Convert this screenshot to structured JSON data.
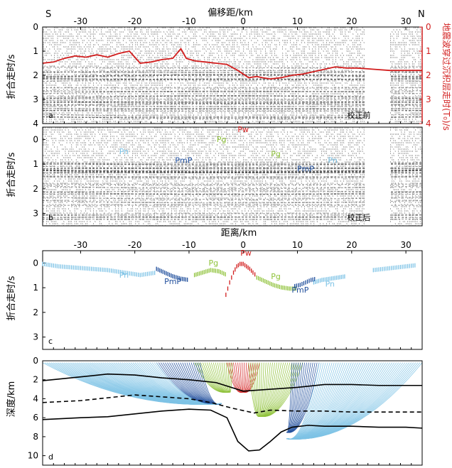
{
  "figure": {
    "label_s": "S",
    "label_n": "N",
    "top_axis_title": "偏移距/km",
    "mid_axis_title": "距离/km",
    "ylabel_time": "折合走时/s",
    "ylabel_right": "地震波穿过沉积层走时(T₀)/s",
    "ylabel_depth": "深度/km"
  },
  "colors": {
    "red": "#d21e1e",
    "green": "#8fc23a",
    "darkblue": "#1f4e9c",
    "lightblue": "#7ec3e6",
    "black": "#111111"
  },
  "chart_data": [
    {
      "id": "a",
      "type": "line",
      "panel_label": "a",
      "note": "校正前",
      "xlim": [
        -37,
        33
      ],
      "ylim": [
        0,
        4
      ],
      "x_ticks": [
        -30,
        -20,
        -10,
        0,
        10,
        20,
        30
      ],
      "y_ticks": [
        0,
        1,
        2,
        3,
        4
      ],
      "right_y_ticks": [
        0,
        1,
        2,
        3,
        4
      ],
      "series": [
        {
          "x": [
            -37,
            -35,
            -33,
            -31,
            -29,
            -27,
            -25,
            -23,
            -21,
            -19,
            -17,
            -15,
            -13,
            -11.5,
            -10.5,
            -9,
            -7,
            -5,
            -3,
            -1,
            1,
            2.5,
            3.5,
            5,
            7,
            9,
            11,
            13,
            15,
            17,
            19,
            21,
            24,
            27,
            30,
            33
          ],
          "y": [
            1.5,
            1.45,
            1.3,
            1.2,
            1.25,
            1.15,
            1.25,
            1.1,
            1.0,
            1.5,
            1.45,
            1.35,
            1.3,
            0.9,
            1.3,
            1.4,
            1.45,
            1.5,
            1.55,
            1.8,
            2.1,
            2.05,
            2.1,
            2.15,
            2.1,
            2.0,
            1.95,
            1.85,
            1.75,
            1.65,
            1.7,
            1.7,
            1.75,
            1.8,
            1.8,
            1.8
          ]
        }
      ]
    },
    {
      "id": "b",
      "type": "scatter",
      "panel_label": "b",
      "note": "校正后",
      "xlim": [
        -37,
        33
      ],
      "ylim": [
        -0.5,
        3.5
      ],
      "y_ticks": [
        0,
        1,
        2,
        3
      ],
      "phase_labels": [
        {
          "text": "Pn",
          "x": -22,
          "y": 0.6,
          "color": "lightblue"
        },
        {
          "text": "PmP",
          "x": -11,
          "y": 0.95,
          "color": "darkblue"
        },
        {
          "text": "Pg",
          "x": -4,
          "y": 0.1,
          "color": "green"
        },
        {
          "text": "Pw",
          "x": 0,
          "y": -0.3,
          "color": "red"
        },
        {
          "text": "Pg",
          "x": 6,
          "y": 0.7,
          "color": "green"
        },
        {
          "text": "PmP",
          "x": 11.5,
          "y": 1.3,
          "color": "darkblue"
        },
        {
          "text": "Pn",
          "x": 16.5,
          "y": 0.95,
          "color": "lightblue"
        }
      ]
    },
    {
      "id": "c",
      "type": "scatter",
      "panel_label": "c",
      "xlim": [
        -37,
        33
      ],
      "ylim": [
        -0.5,
        3.5
      ],
      "x_ticks": [
        -30,
        -20,
        -10,
        0,
        10,
        20,
        30
      ],
      "y_ticks": [
        0,
        1,
        2,
        3
      ],
      "phase_labels": [
        {
          "text": "Pn",
          "x": -22,
          "y": 0.6,
          "color": "lightblue"
        },
        {
          "text": "PmP",
          "x": -13,
          "y": 0.85,
          "color": "darkblue"
        },
        {
          "text": "Pg",
          "x": -5.5,
          "y": 0.1,
          "color": "green"
        },
        {
          "text": "Pw",
          "x": 0.5,
          "y": -0.3,
          "color": "red"
        },
        {
          "text": "Pg",
          "x": 6,
          "y": 0.65,
          "color": "green"
        },
        {
          "text": "PmP",
          "x": 10.5,
          "y": 1.2,
          "color": "darkblue"
        },
        {
          "text": "Pn",
          "x": 16,
          "y": 0.95,
          "color": "lightblue"
        }
      ],
      "series": [
        {
          "name": "Pn",
          "color": "lightblue",
          "x": [
            -37,
            -34,
            -31,
            -28,
            -25,
            -22,
            -19,
            -16
          ],
          "y": [
            -0.05,
            0.05,
            0.1,
            0.15,
            0.2,
            0.3,
            0.4,
            0.3
          ]
        },
        {
          "name": "PmP",
          "color": "darkblue",
          "x": [
            -16,
            -14.5,
            -13,
            -11.5,
            -10
          ],
          "y": [
            0.15,
            0.3,
            0.45,
            0.55,
            0.6
          ]
        },
        {
          "name": "Pg",
          "color": "green",
          "x": [
            -9,
            -7.5,
            -6,
            -4.5,
            -3
          ],
          "y": [
            0.4,
            0.3,
            0.2,
            0.25,
            0.4
          ]
        },
        {
          "name": "Pw",
          "color": "red",
          "x": [
            -3.2,
            -2.5,
            -1.8,
            -1.2,
            -0.6,
            0,
            0.6,
            1.2,
            1.8,
            2.5
          ],
          "y": [
            1.2,
            0.7,
            0.3,
            0.05,
            -0.05,
            -0.05,
            0.05,
            0.15,
            0.3,
            0.45
          ]
        },
        {
          "name": "Pg",
          "color": "green",
          "x": [
            2.5,
            4,
            5.5,
            7,
            8.5,
            10
          ],
          "y": [
            0.5,
            0.65,
            0.8,
            0.9,
            0.95,
            0.95
          ]
        },
        {
          "name": "PmP",
          "color": "darkblue",
          "x": [
            9.5,
            10.5,
            11.5,
            12.5,
            13.5
          ],
          "y": [
            0.85,
            0.8,
            0.7,
            0.6,
            0.55
          ]
        },
        {
          "name": "Pn",
          "color": "lightblue",
          "x": [
            13,
            14.5,
            16,
            17.5,
            19
          ],
          "y": [
            0.7,
            0.6,
            0.55,
            0.5,
            0.45
          ]
        },
        {
          "name": "Pn",
          "color": "lightblue",
          "x": [
            24,
            26,
            28,
            30,
            32
          ],
          "y": [
            0.2,
            0.15,
            0.1,
            0.05,
            0.0
          ]
        }
      ]
    },
    {
      "id": "d",
      "type": "line",
      "panel_label": "d",
      "xlim": [
        -37,
        33
      ],
      "ylim": [
        0,
        11
      ],
      "y_ticks": [
        0,
        2,
        4,
        6,
        8,
        10
      ],
      "series": [
        {
          "name": "interface-1",
          "style": "solid",
          "x": [
            -37,
            -30,
            -25,
            -20,
            -15,
            -10,
            -5,
            0,
            5,
            10,
            15,
            20,
            25,
            30,
            33
          ],
          "y": [
            2.1,
            1.7,
            1.4,
            1.5,
            1.8,
            2.0,
            2.3,
            3.2,
            3.0,
            2.8,
            2.5,
            2.5,
            2.6,
            2.6,
            2.6
          ]
        },
        {
          "name": "interface-2",
          "style": "dashed",
          "x": [
            -37,
            -30,
            -25,
            -20,
            -15,
            -10,
            -6,
            -2,
            2,
            5,
            10,
            15,
            20,
            25,
            30,
            33
          ],
          "y": [
            4.4,
            4.2,
            3.9,
            3.6,
            3.8,
            4.0,
            4.4,
            5.0,
            5.5,
            5.2,
            5.3,
            5.3,
            5.4,
            5.4,
            5.4,
            5.4
          ]
        },
        {
          "name": "interface-3",
          "style": "solid",
          "x": [
            -37,
            -30,
            -25,
            -20,
            -15,
            -10,
            -6,
            -3,
            -1,
            1,
            3,
            5,
            7,
            9,
            12,
            15,
            20,
            25,
            30,
            33
          ],
          "y": [
            6.2,
            6.0,
            5.9,
            5.6,
            5.3,
            5.1,
            5.2,
            6.0,
            8.5,
            9.5,
            9.4,
            8.5,
            7.5,
            7.0,
            6.8,
            6.9,
            6.9,
            7.0,
            7.0,
            7.1
          ]
        }
      ],
      "ray_fans": [
        {
          "color": "red",
          "source_x": 0,
          "source_y": 3.2,
          "x_from": -3,
          "x_to": 3,
          "surface_y": 0.2
        },
        {
          "color": "green",
          "source_x": -2.5,
          "source_y": 3.2,
          "x_from": -9,
          "x_to": -2,
          "surface_y": 0.2
        },
        {
          "color": "green",
          "source_x": 3,
          "source_y": 5.8,
          "x_from": 1,
          "x_to": 11,
          "surface_y": 0.2
        },
        {
          "color": "darkblue",
          "source_x": -4,
          "source_y": 4.5,
          "x_from": -16,
          "x_to": -8,
          "surface_y": 0.2
        },
        {
          "color": "darkblue",
          "source_x": 8,
          "source_y": 7.5,
          "x_from": 9,
          "x_to": 14,
          "surface_y": 0.2
        },
        {
          "color": "lightblue",
          "source_x": -4,
          "source_y": 4.5,
          "x_from": -37,
          "x_to": -16,
          "surface_y": 0.2
        },
        {
          "color": "lightblue",
          "source_x": 8,
          "source_y": 8.2,
          "x_from": 14,
          "x_to": 33,
          "surface_y": 0.2
        }
      ]
    }
  ]
}
